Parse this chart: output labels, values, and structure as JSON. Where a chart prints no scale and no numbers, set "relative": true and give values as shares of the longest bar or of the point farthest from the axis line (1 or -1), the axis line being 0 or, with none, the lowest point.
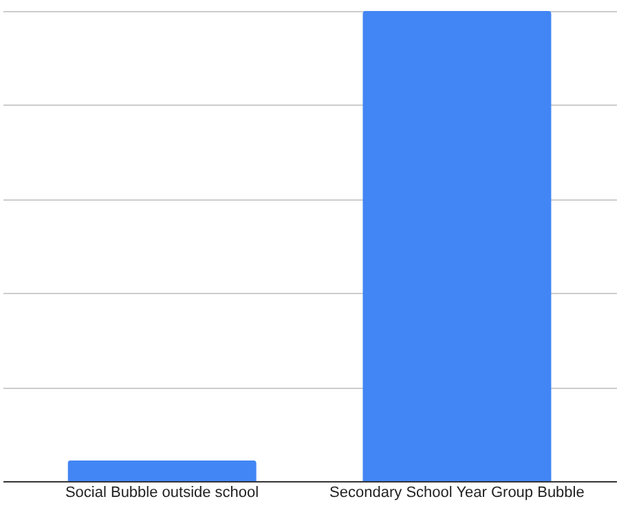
{
  "chart_data": {
    "type": "bar",
    "categories": [
      "Social Bubble outside school",
      "Secondary School Year Group Bubble"
    ],
    "values": [
      0.044,
      1
    ],
    "color": "#4285f4",
    "relative": true,
    "grid": "y"
  }
}
